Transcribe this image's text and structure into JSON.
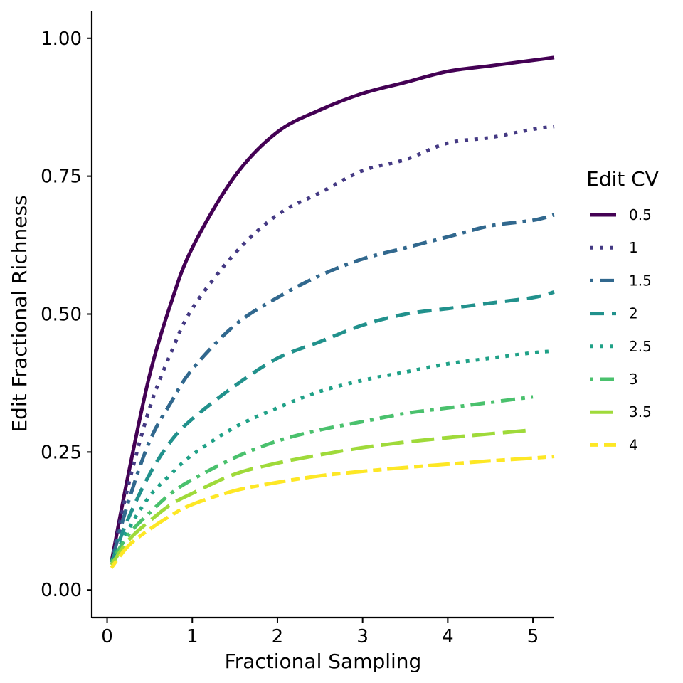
{
  "chart_data": {
    "type": "line",
    "xlabel": "Fractional Sampling",
    "ylabel": "Edit Fractional Richness",
    "xlim": [
      -0.18,
      5.25
    ],
    "ylim": [
      -0.05,
      1.05
    ],
    "x_ticks": [
      0,
      1,
      2,
      3,
      4,
      5
    ],
    "x_tick_labels": [
      "0",
      "1",
      "2",
      "3",
      "4",
      "5"
    ],
    "y_ticks": [
      0,
      0.25,
      0.5,
      0.75,
      1.0
    ],
    "y_tick_labels": [
      "0.00",
      "0.25",
      "0.50",
      "0.75",
      "1.00"
    ],
    "grid": false,
    "legend": {
      "title": "Edit CV",
      "position": "right"
    },
    "series": [
      {
        "name": "0.5",
        "color": "#440154",
        "dash": "solid",
        "x": [
          0.05,
          0.25,
          0.5,
          0.75,
          1.0,
          1.5,
          2.0,
          2.5,
          3.0,
          3.5,
          4.0,
          4.5,
          5.0,
          5.25
        ],
        "y": [
          0.05,
          0.21,
          0.39,
          0.52,
          0.62,
          0.75,
          0.83,
          0.87,
          0.9,
          0.92,
          0.94,
          0.95,
          0.96,
          0.965
        ]
      },
      {
        "name": "1",
        "color": "#443983",
        "dash": "dotted",
        "x": [
          0.05,
          0.25,
          0.5,
          0.75,
          1.0,
          1.5,
          2.0,
          2.5,
          3.0,
          3.5,
          4.0,
          4.5,
          5.0,
          5.25
        ],
        "y": [
          0.05,
          0.19,
          0.33,
          0.43,
          0.51,
          0.61,
          0.68,
          0.72,
          0.76,
          0.78,
          0.81,
          0.82,
          0.835,
          0.84
        ]
      },
      {
        "name": "1.5",
        "color": "#31688e",
        "dash": "dotdash",
        "x": [
          0.05,
          0.25,
          0.5,
          0.75,
          1.0,
          1.5,
          2.0,
          2.5,
          3.0,
          3.5,
          4.0,
          4.5,
          5.0,
          5.25
        ],
        "y": [
          0.05,
          0.16,
          0.27,
          0.34,
          0.4,
          0.48,
          0.53,
          0.57,
          0.6,
          0.62,
          0.64,
          0.66,
          0.67,
          0.68
        ]
      },
      {
        "name": "2",
        "color": "#21918c",
        "dash": "dashed",
        "x": [
          0.05,
          0.25,
          0.5,
          0.75,
          1.0,
          1.5,
          2.0,
          2.5,
          3.0,
          3.5,
          4.0,
          4.5,
          5.0,
          5.25
        ],
        "y": [
          0.05,
          0.13,
          0.21,
          0.27,
          0.31,
          0.37,
          0.42,
          0.45,
          0.48,
          0.5,
          0.51,
          0.52,
          0.53,
          0.54
        ]
      },
      {
        "name": "2.5",
        "color": "#1fa187",
        "dash": "dotted",
        "x": [
          0.05,
          0.25,
          0.5,
          0.75,
          1.0,
          1.5,
          2.0,
          2.5,
          3.0,
          3.5,
          4.0,
          4.5,
          5.0,
          5.25
        ],
        "y": [
          0.05,
          0.11,
          0.17,
          0.21,
          0.245,
          0.295,
          0.33,
          0.36,
          0.38,
          0.395,
          0.41,
          0.42,
          0.43,
          0.433
        ]
      },
      {
        "name": "3",
        "color": "#4ac16d",
        "dash": "dotdash",
        "x": [
          0.05,
          0.25,
          0.5,
          0.75,
          1.0,
          1.5,
          2.0,
          2.5,
          3.0,
          3.5,
          4.0,
          4.5,
          5.0
        ],
        "y": [
          0.05,
          0.1,
          0.14,
          0.175,
          0.2,
          0.24,
          0.27,
          0.29,
          0.305,
          0.32,
          0.33,
          0.34,
          0.35
        ]
      },
      {
        "name": "3.5",
        "color": "#9fda3a",
        "dash": "longdash",
        "x": [
          0.05,
          0.25,
          0.5,
          0.75,
          1.0,
          1.5,
          2.0,
          2.5,
          3.0,
          3.5,
          4.0,
          4.5,
          5.0
        ],
        "y": [
          0.045,
          0.09,
          0.125,
          0.155,
          0.175,
          0.21,
          0.23,
          0.245,
          0.258,
          0.268,
          0.276,
          0.283,
          0.29
        ]
      },
      {
        "name": "4",
        "color": "#fde725",
        "dash": "twodash",
        "x": [
          0.05,
          0.25,
          0.5,
          0.75,
          1.0,
          1.5,
          2.0,
          2.5,
          3.0,
          3.5,
          4.0,
          4.5,
          5.0,
          5.25
        ],
        "y": [
          0.04,
          0.08,
          0.11,
          0.135,
          0.155,
          0.18,
          0.195,
          0.207,
          0.215,
          0.222,
          0.228,
          0.234,
          0.239,
          0.242
        ]
      }
    ]
  }
}
